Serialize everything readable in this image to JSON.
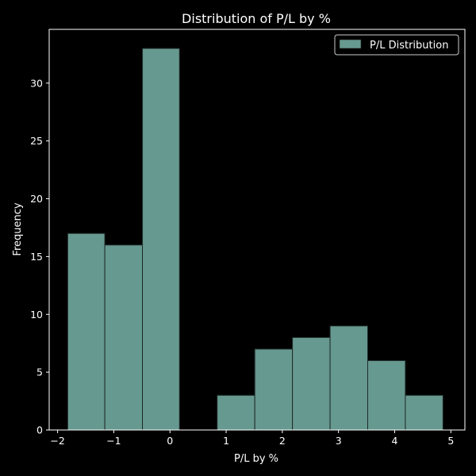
{
  "chart_data": {
    "type": "bar",
    "title": "Distribution of P/L by %",
    "xlabel": "P/L by %",
    "ylabel": "Frequency",
    "xlim": [
      -2.15,
      5.25
    ],
    "ylim": [
      0,
      34.65
    ],
    "xticks": [
      -2,
      -1,
      0,
      1,
      2,
      3,
      4,
      5
    ],
    "yticks": [
      0,
      5,
      10,
      15,
      20,
      25,
      30
    ],
    "series": [
      {
        "name": "P/L Distribution",
        "color": "#66998f",
        "bins": [
          {
            "x0": -1.82,
            "x1": -1.16,
            "value": 17
          },
          {
            "x0": -1.16,
            "x1": -0.49,
            "value": 16
          },
          {
            "x0": -0.49,
            "x1": 0.17,
            "value": 33
          },
          {
            "x0": 0.17,
            "x1": 0.84,
            "value": 0
          },
          {
            "x0": 0.84,
            "x1": 1.51,
            "value": 3
          },
          {
            "x0": 1.51,
            "x1": 2.18,
            "value": 7
          },
          {
            "x0": 2.18,
            "x1": 2.85,
            "value": 8
          },
          {
            "x0": 2.85,
            "x1": 3.52,
            "value": 9
          },
          {
            "x0": 3.52,
            "x1": 4.19,
            "value": 6
          },
          {
            "x0": 4.19,
            "x1": 4.86,
            "value": 3
          }
        ]
      }
    ],
    "legend": {
      "position": "top-right",
      "label": "P/L Distribution"
    },
    "grid": false
  }
}
